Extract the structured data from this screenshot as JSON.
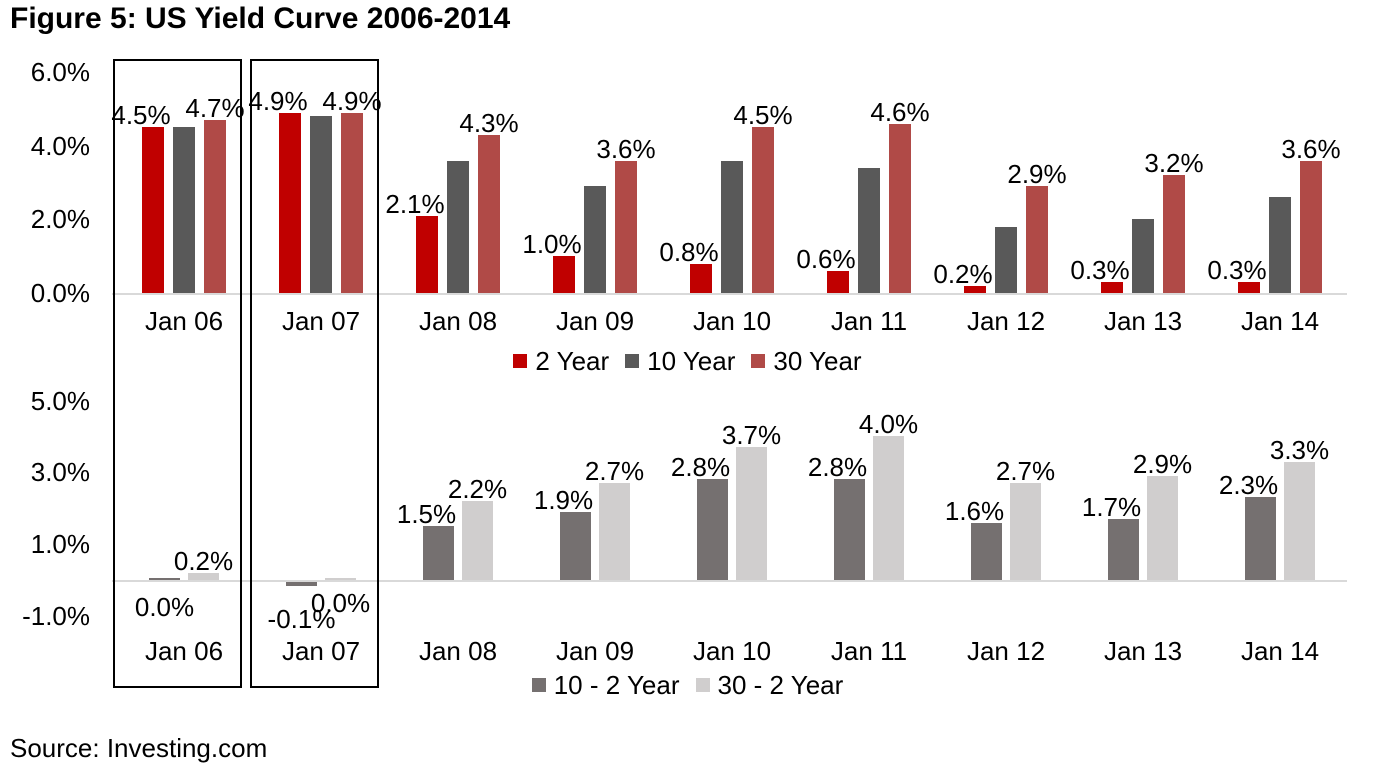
{
  "title": "Figure 5: US Yield Curve 2006-2014",
  "source": "Source: Investing.com",
  "colors": {
    "two_year": "#C00000",
    "ten_year": "#595959",
    "thirty_year": "#B04A47",
    "spread_10_2": "#757070",
    "spread_30_2": "#D0CECE",
    "axis_line": "#D9D9D9",
    "text": "#000000",
    "highlight_border": "#000000"
  },
  "annotations": {
    "highlighted_categories": [
      "Jan 06",
      "Jan 07"
    ]
  },
  "chart_data": [
    {
      "type": "bar",
      "categories": [
        "Jan 06",
        "Jan 07",
        "Jan 08",
        "Jan 09",
        "Jan 10",
        "Jan 11",
        "Jan 12",
        "Jan 13",
        "Jan 14"
      ],
      "ylim": [
        0,
        6
      ],
      "grid": false,
      "legend_position": "bottom",
      "yticks": [
        {
          "value": 6,
          "label": "6.0%"
        },
        {
          "value": 4,
          "label": "4.0%"
        },
        {
          "value": 2,
          "label": "2.0%"
        },
        {
          "value": 0,
          "label": "0.0%"
        }
      ],
      "series": [
        {
          "name": "2 Year",
          "color_key": "two_year",
          "show_labels": true,
          "values": [
            4.5,
            4.9,
            2.1,
            1.0,
            0.8,
            0.6,
            0.2,
            0.3,
            0.3
          ],
          "labels": [
            "4.5%",
            "4.9%",
            "2.1%",
            "1.0%",
            "0.8%",
            "0.6%",
            "0.2%",
            "0.3%",
            "0.3%"
          ]
        },
        {
          "name": "10 Year",
          "color_key": "ten_year",
          "show_labels": false,
          "values": [
            4.5,
            4.8,
            3.6,
            2.9,
            3.6,
            3.4,
            1.8,
            2.0,
            2.6
          ],
          "labels": []
        },
        {
          "name": "30 Year",
          "color_key": "thirty_year",
          "show_labels": true,
          "values": [
            4.7,
            4.9,
            4.3,
            3.6,
            4.5,
            4.6,
            2.9,
            3.2,
            3.6
          ],
          "labels": [
            "4.7%",
            "4.9%",
            "4.3%",
            "3.6%",
            "4.5%",
            "4.6%",
            "2.9%",
            "3.2%",
            "3.6%"
          ]
        }
      ]
    },
    {
      "type": "bar",
      "categories": [
        "Jan 06",
        "Jan 07",
        "Jan 08",
        "Jan 09",
        "Jan 10",
        "Jan 11",
        "Jan 12",
        "Jan 13",
        "Jan 14"
      ],
      "ylim": [
        -1,
        5
      ],
      "grid": false,
      "legend_position": "bottom",
      "yticks": [
        {
          "value": 5,
          "label": "5.0%"
        },
        {
          "value": 3,
          "label": "3.0%"
        },
        {
          "value": 1,
          "label": "1.0%"
        },
        {
          "value": -1,
          "label": "-1.0%"
        }
      ],
      "series": [
        {
          "name": "10 - 2 Year",
          "color_key": "spread_10_2",
          "show_labels": true,
          "values": [
            0.0,
            -0.1,
            1.5,
            1.9,
            2.8,
            2.8,
            1.6,
            1.7,
            2.3
          ],
          "labels": [
            "0.0%",
            "-0.1%",
            "1.5%",
            "1.9%",
            "2.8%",
            "2.8%",
            "1.6%",
            "1.7%",
            "2.3%"
          ]
        },
        {
          "name": "30 - 2 Year",
          "color_key": "spread_30_2",
          "show_labels": true,
          "values": [
            0.2,
            0.0,
            2.2,
            2.7,
            3.7,
            4.0,
            2.7,
            2.9,
            3.3
          ],
          "labels": [
            "0.2%",
            "0.0%",
            "2.2%",
            "2.7%",
            "3.7%",
            "4.0%",
            "2.7%",
            "2.9%",
            "3.3%"
          ]
        }
      ]
    }
  ]
}
